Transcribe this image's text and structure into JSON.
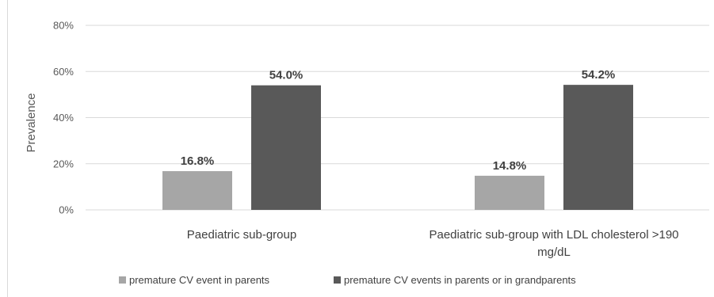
{
  "chart_data": {
    "type": "bar",
    "title": "",
    "xlabel": "",
    "ylabel": "Prevalence",
    "ylim": [
      0,
      80
    ],
    "yticks": [
      "0%",
      "20%",
      "40%",
      "60%",
      "80%"
    ],
    "categories": [
      [
        "Paediatric sub-group"
      ],
      [
        "Paediatric sub-group with LDL cholesterol >190",
        "mg/dL"
      ]
    ],
    "series": [
      {
        "name": "premature CV event in parents",
        "color": "#a6a6a6",
        "values": [
          16.8,
          14.8
        ],
        "labels": [
          "16.8%",
          "14.8%"
        ]
      },
      {
        "name": "premature CV events in parents or in grandparents",
        "color": "#595959",
        "values": [
          54.0,
          54.2
        ],
        "labels": [
          "54.0%",
          "54.2%"
        ]
      }
    ],
    "grid": true,
    "legend": "bottom"
  }
}
